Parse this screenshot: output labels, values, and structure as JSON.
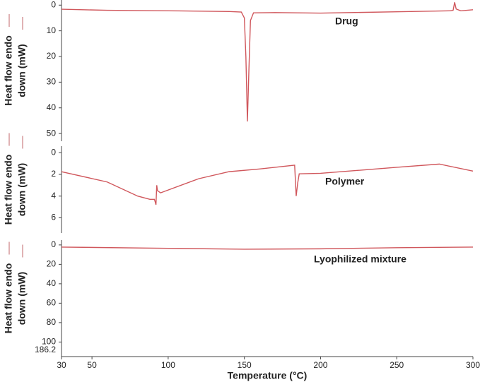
{
  "chart_data": [
    {
      "type": "line",
      "ylabel": [
        "Heat flow endo",
        "down (mW)"
      ],
      "xlim": [
        30,
        300
      ],
      "ylim": [
        -2,
        53
      ],
      "y_inverted": true,
      "yticks": [
        0,
        10,
        20,
        30,
        40,
        50
      ],
      "x": [
        30,
        60,
        100,
        140,
        148,
        150,
        151,
        152,
        153,
        154,
        156,
        170,
        200,
        250,
        285,
        287,
        288,
        289,
        292,
        300
      ],
      "series": [
        {
          "name": "Drug",
          "color": "#d0575c",
          "values": [
            1.6,
            2.0,
            2.2,
            2.5,
            2.7,
            5,
            20,
            45.3,
            25,
            6,
            3,
            2.9,
            3.1,
            2.6,
            2.2,
            2.0,
            -1.1,
            1.5,
            2.2,
            1.8
          ]
        }
      ]
    },
    {
      "type": "line",
      "ylabel": [
        "Heat flow endo",
        "down (mW)"
      ],
      "xlim": [
        30,
        300
      ],
      "ylim": [
        -0.6,
        7.4
      ],
      "y_inverted": true,
      "yticks": [
        0,
        2,
        4,
        6
      ],
      "x": [
        30,
        60,
        80,
        88,
        91,
        92,
        92.5,
        93,
        95,
        120,
        140,
        160,
        183,
        184,
        185,
        186,
        200,
        250,
        278,
        300
      ],
      "series": [
        {
          "name": "Polymer",
          "color": "#d0575c",
          "values": [
            1.75,
            2.7,
            4.0,
            4.3,
            4.3,
            4.8,
            3.0,
            3.5,
            3.7,
            2.4,
            1.75,
            1.5,
            1.15,
            4.0,
            2.8,
            1.95,
            1.9,
            1.35,
            1.05,
            1.7
          ]
        }
      ]
    },
    {
      "type": "line",
      "ylabel": [
        "Heat flow endo",
        "down (mW)"
      ],
      "xlim": [
        30,
        300
      ],
      "ylim": [
        -5,
        115
      ],
      "y_inverted": true,
      "yticks": [
        0,
        20,
        40,
        60,
        80,
        100
      ],
      "axis_end_label": "186.2",
      "xlabel": "Temperature (°C)",
      "xticks": [
        30,
        50,
        100,
        150,
        200,
        250,
        300
      ],
      "x": [
        30,
        100,
        150,
        200,
        250,
        300
      ],
      "series": [
        {
          "name": "Lyophilized mixture",
          "color": "#d0575c",
          "values": [
            2.2,
            3.5,
            4.4,
            4.0,
            2.9,
            2.2
          ]
        }
      ]
    }
  ]
}
